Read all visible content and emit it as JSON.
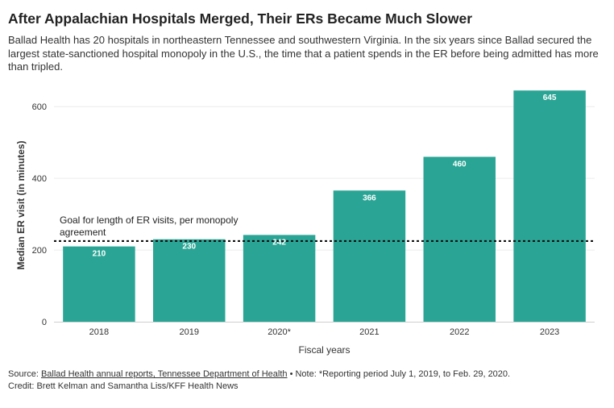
{
  "header": {
    "title": "After Appalachian Hospitals Merged, Their ERs Became Much Slower",
    "subtitle": "Ballad Health has 20 hospitals in northeastern Tennessee and southwestern Virginia. In the six years since Ballad secured the largest state-sanctioned hospital monopoly in the U.S., the time that a patient spends in the ER before being admitted has more than tripled."
  },
  "chart_data": {
    "type": "bar",
    "categories": [
      "2018",
      "2019",
      "2020*",
      "2021",
      "2022",
      "2023"
    ],
    "values": [
      210,
      230,
      242,
      366,
      460,
      645
    ],
    "data_labels": [
      "210",
      "230",
      "242",
      "366",
      "460",
      "645"
    ],
    "xlabel": "Fiscal years",
    "ylabel": "Median ER visit (in minutes)",
    "ylim": [
      0,
      650
    ],
    "yticks": [
      0,
      200,
      400,
      600
    ],
    "grid": true,
    "bar_color": "#2aa595",
    "reference_line": {
      "value": 225,
      "label_line1": "Goal for length of ER visits, per monopoly",
      "label_line2": "agreement"
    }
  },
  "footer": {
    "source_prefix": "Source: ",
    "source_link": "Ballad Health annual reports, Tennessee Department of Health",
    "note": " • Note: *Reporting period July 1, 2019, to Feb. 29, 2020.",
    "credit": "Credit: Brett Kelman and Samantha Liss/KFF Health News"
  }
}
